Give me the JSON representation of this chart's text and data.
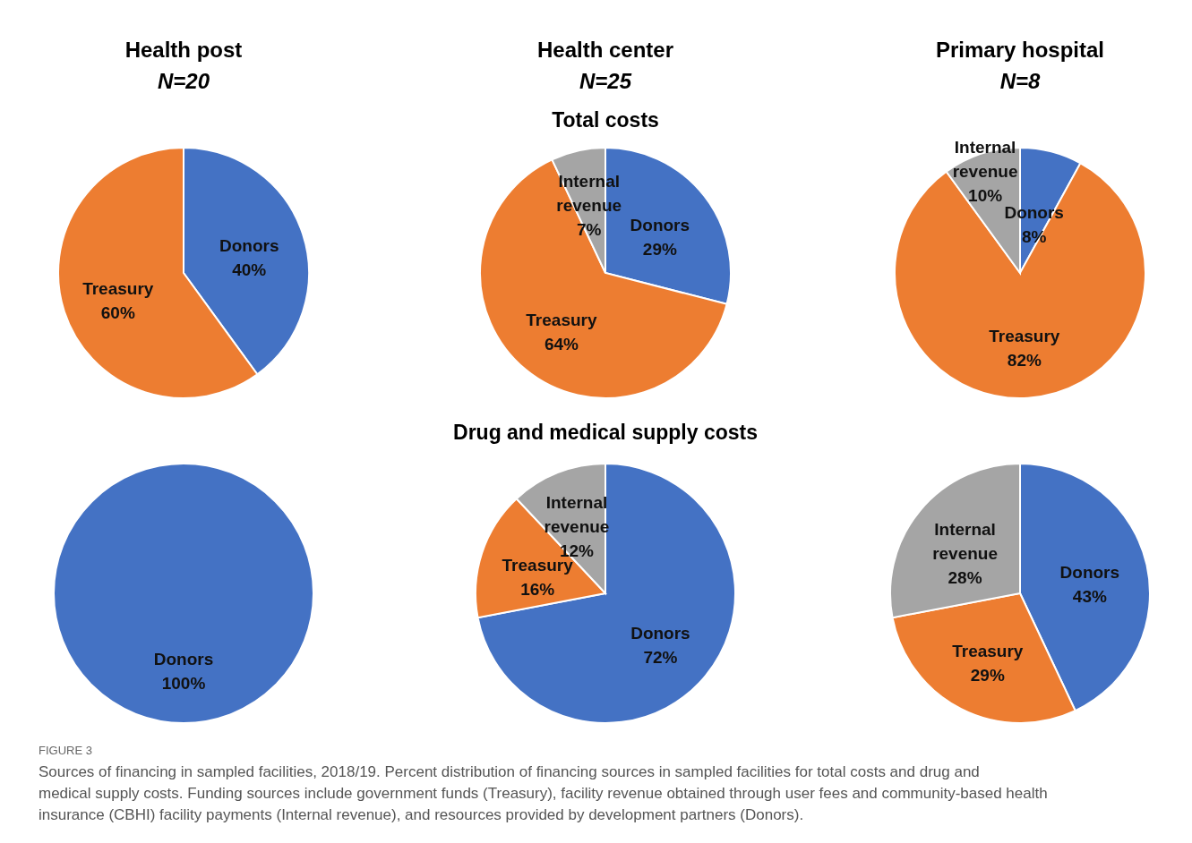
{
  "chart_data": [
    {
      "type": "pie",
      "title": "Health post",
      "subtitle": "N=20",
      "categories": [
        "Donors",
        "Treasury"
      ],
      "values": [
        40,
        60
      ],
      "value_labels": [
        "40%",
        "60%"
      ],
      "colors": [
        "#4472c4",
        "#ed7d31"
      ]
    },
    {
      "type": "pie",
      "title": "Health center",
      "subtitle": "N=25",
      "annotations": [
        "Total costs"
      ],
      "categories": [
        "Donors",
        "Treasury",
        "Internal revenue"
      ],
      "values": [
        29,
        64,
        7
      ],
      "value_labels": [
        "29%",
        "64%",
        "7%"
      ],
      "colors": [
        "#4472c4",
        "#ed7d31",
        "#a5a5a5"
      ]
    },
    {
      "type": "pie",
      "title": "Primary hospital",
      "subtitle": "N=8",
      "categories": [
        "Donors",
        "Treasury",
        "Internal revenue"
      ],
      "values": [
        8,
        82,
        10
      ],
      "value_labels": [
        "8%",
        "82%",
        "10%"
      ],
      "colors": [
        "#4472c4",
        "#ed7d31",
        "#a5a5a5"
      ]
    },
    {
      "type": "pie",
      "categories": [
        "Donors"
      ],
      "values": [
        100
      ],
      "value_labels": [
        "100%"
      ],
      "colors": [
        "#4472c4"
      ]
    },
    {
      "type": "pie",
      "annotations": [
        "Drug and medical supply costs"
      ],
      "categories": [
        "Donors",
        "Treasury",
        "Internal revenue"
      ],
      "values": [
        72,
        16,
        12
      ],
      "value_labels": [
        "72%",
        "16%",
        "12%"
      ],
      "colors": [
        "#4472c4",
        "#ed7d31",
        "#a5a5a5"
      ]
    },
    {
      "type": "pie",
      "annotations": [
        "FIGURE 3",
        "Sources of financing in sampled facilities, 2018/19. Percent distribution of financing sources in sampled facilities for total costs and drug and medical supply costs. Funding sources include government funds (Treasury), facility revenue obtained through user fees and community-based health insurance (CBHI) facility payments (Internal revenue), and resources provided by development partners (Donors)."
      ],
      "categories": [
        "Donors",
        "Treasury",
        "Internal revenue"
      ],
      "values": [
        43,
        29,
        28
      ],
      "value_labels": [
        "43%",
        "29%",
        "28%"
      ],
      "colors": [
        "#4472c4",
        "#ed7d31",
        "#a5a5a5"
      ]
    }
  ]
}
